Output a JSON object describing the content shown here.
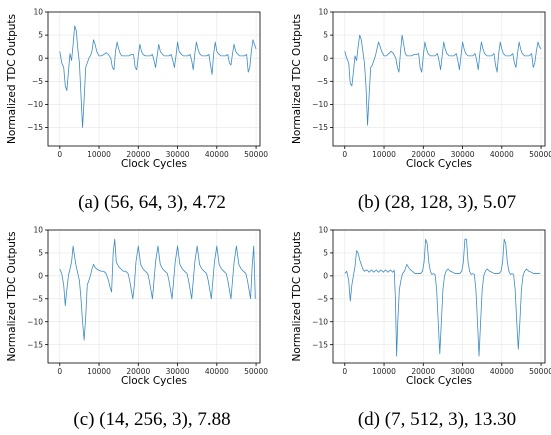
{
  "colors": {
    "line": "#3b8bc2",
    "grid": "#e6e6e6",
    "axis": "#000000"
  },
  "chart_data": [
    {
      "type": "line",
      "caption": "(a) (56, 64, 3), 4.72",
      "xlabel": "Clock Cycles",
      "ylabel": "Normalized TDC Outputs",
      "xlim": [
        -3000,
        51000
      ],
      "ylim": [
        -19,
        10
      ],
      "xticks": [
        0,
        10000,
        20000,
        30000,
        40000,
        50000
      ],
      "xtick_labels": [
        "0",
        "10000",
        "20000",
        "30000",
        "40000",
        "50000"
      ],
      "yticks": [
        10,
        5,
        0,
        -5,
        -10,
        -15
      ],
      "ytick_labels": [
        "10",
        "5",
        "0",
        "−5",
        "−10",
        "−15"
      ],
      "grid": true,
      "series": [
        {
          "x": [
            0,
            500,
            1000,
            1400,
            1800,
            2200,
            2600,
            3000,
            3400,
            3800,
            4200,
            4600,
            5000,
            5400,
            5800,
            6200,
            6600,
            7000,
            7400,
            7800,
            8200,
            8600,
            9000,
            9400,
            10000,
            10600,
            11200,
            11800,
            12400,
            13000,
            13400,
            13800,
            14200,
            14600,
            15000,
            15400,
            15800,
            16400,
            17000,
            17600,
            18200,
            18800,
            19200,
            19600,
            20000,
            20400,
            20800,
            21200,
            21800,
            22400,
            23000,
            23600,
            24000,
            24400,
            24800,
            25200,
            25600,
            26000,
            26600,
            27200,
            27800,
            28400,
            28800,
            29200,
            29600,
            30000,
            30400,
            30800,
            31400,
            32000,
            32600,
            33200,
            33600,
            34000,
            34400,
            34800,
            35200,
            35600,
            36200,
            36800,
            37400,
            38000,
            38400,
            38800,
            39200,
            39600,
            40000,
            40400,
            41000,
            41600,
            42200,
            42800,
            43200,
            43600,
            44000,
            44400,
            44800,
            45200,
            45800,
            46400,
            47000,
            47600,
            48000,
            48400,
            48800,
            49200,
            49600,
            50000
          ],
          "y": [
            1.5,
            -1,
            -2,
            -6,
            -7,
            -3,
            1,
            -0.5,
            3,
            7,
            6,
            2,
            -1,
            -8,
            -15,
            -9,
            -2,
            -1,
            0,
            0.5,
            1.5,
            4,
            3,
            1.5,
            0.5,
            0.5,
            0.8,
            1.2,
            0.8,
            0,
            -2,
            -2.5,
            1.5,
            3.5,
            2,
            1,
            0.5,
            0.5,
            0.5,
            0.5,
            0.8,
            0.8,
            -2,
            -2.5,
            0.5,
            3,
            1.5,
            0.8,
            0.5,
            0.5,
            0.5,
            0.8,
            -0.5,
            -2,
            0.5,
            3,
            1.5,
            1,
            0.5,
            0.5,
            0.5,
            0.8,
            -0.5,
            -2,
            0.5,
            3.5,
            1.5,
            1,
            0.5,
            0.5,
            0.5,
            0.8,
            -0.5,
            -2.5,
            1,
            3.5,
            2,
            1,
            0.5,
            0.5,
            0.5,
            0.8,
            -1.5,
            -3.5,
            1,
            3.5,
            1.5,
            1,
            0.5,
            0.5,
            0.5,
            0.8,
            -1,
            -1.5,
            1,
            3,
            1.5,
            1,
            0.5,
            0.5,
            0.5,
            0.8,
            -3,
            -2,
            1.5,
            4,
            3,
            2
          ]
        }
      ]
    },
    {
      "type": "line",
      "caption": "(b) (28, 128, 3), 5.07",
      "xlabel": "Clock Cycles",
      "ylabel": "Normalized TDC Outputs",
      "xlim": [
        -3000,
        51000
      ],
      "ylim": [
        -19,
        10
      ],
      "xticks": [
        0,
        10000,
        20000,
        30000,
        40000,
        50000
      ],
      "xtick_labels": [
        "0",
        "10000",
        "20000",
        "30000",
        "40000",
        "50000"
      ],
      "yticks": [
        10,
        5,
        0,
        -5,
        -10,
        -15
      ],
      "ytick_labels": [
        "10",
        "5",
        "0",
        "−5",
        "−10",
        "−15"
      ],
      "grid": true,
      "series": [
        {
          "x": [
            0,
            500,
            1000,
            1400,
            1800,
            2200,
            2600,
            3000,
            3400,
            3800,
            4200,
            4600,
            5000,
            5400,
            5800,
            6200,
            6600,
            7000,
            7400,
            7800,
            8200,
            8600,
            9000,
            9400,
            10000,
            10600,
            11200,
            11800,
            12400,
            13000,
            13400,
            13800,
            14200,
            14600,
            15000,
            15400,
            15800,
            16400,
            17000,
            17600,
            18200,
            18800,
            19200,
            19600,
            20000,
            20400,
            20800,
            21200,
            21800,
            22400,
            23000,
            23600,
            24000,
            24400,
            24800,
            25200,
            25600,
            26000,
            26600,
            27200,
            27800,
            28400,
            28800,
            29200,
            29600,
            30000,
            30400,
            30800,
            31400,
            32000,
            32600,
            33200,
            33600,
            34000,
            34400,
            34800,
            35200,
            35600,
            36200,
            36800,
            37400,
            38000,
            38400,
            38800,
            39200,
            39600,
            40000,
            40400,
            41000,
            41600,
            42200,
            42800,
            43200,
            43600,
            44000,
            44400,
            44800,
            45200,
            45800,
            46400,
            47000,
            47600,
            48000,
            48400,
            48800,
            49200,
            49600,
            50000
          ],
          "y": [
            1.5,
            0,
            -1,
            -5.5,
            -6,
            -3,
            0.5,
            -0.5,
            2.5,
            5,
            4,
            1.5,
            -1,
            -6,
            -14.5,
            -8,
            -2,
            -1.5,
            -0.5,
            0.5,
            2,
            3.5,
            2.5,
            1.5,
            0.5,
            0.5,
            1,
            1.5,
            1,
            0,
            -2,
            -3,
            1.5,
            5,
            3,
            1,
            0.5,
            0.5,
            0.5,
            0.8,
            0.8,
            1,
            -2,
            -3,
            0.5,
            3.5,
            2,
            1,
            0.5,
            0.5,
            0.5,
            1,
            -0.5,
            -2.5,
            0.5,
            3.5,
            2,
            1,
            0.5,
            0.5,
            0.5,
            1,
            -0.5,
            -2.5,
            0.5,
            3.5,
            2,
            1,
            0.5,
            0.5,
            0.5,
            1,
            -0.5,
            -2.5,
            1,
            3.5,
            2,
            1,
            0.5,
            0.5,
            0.5,
            1,
            -1.5,
            -3,
            1,
            3.5,
            2,
            1,
            0.5,
            0.5,
            0.5,
            1,
            -1,
            -2,
            1,
            3.5,
            2,
            1,
            0.5,
            0.5,
            0.5,
            1,
            -2,
            -1,
            1.5,
            3.5,
            2.5,
            2
          ]
        }
      ]
    },
    {
      "type": "line",
      "caption": "(c) (14, 256, 3), 7.88",
      "xlabel": "Clock Cycles",
      "ylabel": "Normalized TDC Outputs",
      "xlim": [
        -3000,
        51000
      ],
      "ylim": [
        -19,
        10
      ],
      "xticks": [
        0,
        10000,
        20000,
        30000,
        40000,
        50000
      ],
      "xtick_labels": [
        "0",
        "10000",
        "20000",
        "30000",
        "40000",
        "50000"
      ],
      "yticks": [
        10,
        5,
        0,
        -5,
        -10,
        -15
      ],
      "ytick_labels": [
        "10",
        "5",
        "0",
        "−5",
        "−10",
        "−15"
      ],
      "grid": true,
      "series": [
        {
          "x": [
            0,
            500,
            1000,
            1400,
            1800,
            2200,
            2600,
            3000,
            3400,
            3800,
            4200,
            4600,
            5000,
            5400,
            5800,
            6200,
            6600,
            7000,
            7400,
            7800,
            8200,
            8600,
            9000,
            9400,
            10000,
            10600,
            11200,
            11800,
            12400,
            12800,
            13200,
            13600,
            14000,
            14400,
            15000,
            15600,
            16200,
            16800,
            17400,
            17800,
            18200,
            18600,
            19000,
            19400,
            20000,
            20600,
            21200,
            21800,
            22400,
            22800,
            23200,
            23600,
            24000,
            24400,
            25000,
            25600,
            26200,
            26800,
            27400,
            27800,
            28200,
            28600,
            29000,
            29400,
            30000,
            30600,
            31200,
            31800,
            32400,
            32800,
            33200,
            33600,
            34000,
            34400,
            35000,
            35600,
            36200,
            36800,
            37400,
            37800,
            38200,
            38600,
            39000,
            39400,
            40000,
            40600,
            41200,
            41800,
            42400,
            42800,
            43200,
            43600,
            44000,
            44400,
            45000,
            45600,
            46200,
            46800,
            47400,
            47800,
            48200,
            48600,
            49000,
            49400,
            49800
          ],
          "y": [
            1.5,
            0.5,
            -2,
            -6.5,
            -3,
            0,
            1.5,
            3,
            6.5,
            4,
            2,
            0.5,
            -1,
            -5,
            -10,
            -14,
            -9,
            -2,
            -1,
            0,
            1.5,
            2.5,
            1.8,
            1.5,
            1.2,
            1,
            1,
            0.5,
            -1,
            -2.5,
            -3.5,
            5,
            8,
            3,
            2,
            1.5,
            1,
            1,
            0.5,
            -1,
            -3,
            -5,
            -2,
            3,
            6.5,
            2.5,
            1.5,
            1,
            0.5,
            -1,
            -3,
            -5,
            -1,
            3,
            6.5,
            2.5,
            1.5,
            1,
            0.5,
            -1,
            -3,
            -5,
            -1,
            3,
            6.5,
            2.5,
            1.5,
            1,
            0.5,
            -1,
            -3,
            -5,
            -1,
            3,
            6.5,
            2.5,
            1.5,
            1,
            0.5,
            -1,
            -3,
            -5,
            -1,
            3,
            6.5,
            2.5,
            1.5,
            1,
            0.5,
            -1,
            -3,
            -5,
            -1,
            3,
            6.5,
            2.5,
            1.5,
            1,
            0.5,
            -1,
            -3,
            -5,
            2,
            6.5,
            -5
          ]
        }
      ]
    },
    {
      "type": "line",
      "caption": "(d) (7, 512, 3), 13.30",
      "xlabel": "Clock Cycles",
      "ylabel": "Normalized TDC Outputs",
      "xlim": [
        -3000,
        51000
      ],
      "ylim": [
        -19,
        10
      ],
      "xticks": [
        0,
        10000,
        20000,
        30000,
        40000,
        50000
      ],
      "xtick_labels": [
        "0",
        "10000",
        "20000",
        "30000",
        "40000",
        "50000"
      ],
      "yticks": [
        10,
        5,
        0,
        -5,
        -10,
        -15
      ],
      "ytick_labels": [
        "10",
        "5",
        "0",
        "−5",
        "−10",
        "−15"
      ],
      "grid": true,
      "series": [
        {
          "x": [
            0,
            500,
            1000,
            1400,
            1800,
            2200,
            2600,
            3000,
            3400,
            3800,
            4200,
            4600,
            5000,
            5600,
            6200,
            6800,
            7400,
            8000,
            8600,
            9200,
            9800,
            10400,
            11000,
            11600,
            12200,
            12600,
            12900,
            13200,
            13500,
            13900,
            14300,
            14700,
            15200,
            15800,
            16500,
            17200,
            17900,
            18600,
            19300,
            19800,
            20200,
            20600,
            21000,
            21400,
            21800,
            22200,
            22600,
            23000,
            23400,
            23800,
            24200,
            24600,
            25000,
            25400,
            25800,
            26300,
            26900,
            27500,
            28100,
            28700,
            29300,
            29800,
            30200,
            30600,
            31000,
            31400,
            31800,
            32200,
            32600,
            33000,
            33400,
            33800,
            34200,
            34600,
            35000,
            35400,
            35800,
            36300,
            36900,
            37500,
            38100,
            38700,
            39300,
            39800,
            40200,
            40600,
            41000,
            41400,
            41800,
            42200,
            42600,
            43000,
            43400,
            43800,
            44200,
            44600,
            45000,
            45400,
            45800,
            46300,
            46900,
            47500,
            48100,
            48700,
            49300,
            49800
          ],
          "y": [
            0.5,
            1,
            -1,
            -5.5,
            -2,
            0,
            2,
            5.5,
            5,
            3.5,
            2.5,
            1.5,
            1,
            1.3,
            0.8,
            1.3,
            0.8,
            1.3,
            0.8,
            1.3,
            0.8,
            1.3,
            0.8,
            1.3,
            0.8,
            1.2,
            -5,
            -17.5,
            -10,
            -3,
            -1,
            0.5,
            1,
            2.5,
            1.5,
            1,
            0.5,
            0.5,
            0.5,
            1,
            3,
            8,
            7,
            3,
            1,
            0.3,
            0.5,
            0.3,
            -3,
            -10,
            -17,
            -10,
            -3,
            0,
            1,
            1.5,
            1,
            0.8,
            0.5,
            0.5,
            0.5,
            1,
            3,
            8,
            8,
            3,
            1,
            0.3,
            0.5,
            0.3,
            -3,
            -10,
            -17.5,
            -10,
            -3,
            0,
            1,
            1.5,
            1,
            0.8,
            0.5,
            0.5,
            0.5,
            1,
            3,
            8,
            7,
            3,
            1,
            0.3,
            0.5,
            0.3,
            -3,
            -10,
            -16,
            -10,
            -3,
            0,
            1,
            1.5,
            1,
            0.8,
            0.5,
            0.5,
            0.5,
            0.5
          ]
        }
      ]
    }
  ]
}
